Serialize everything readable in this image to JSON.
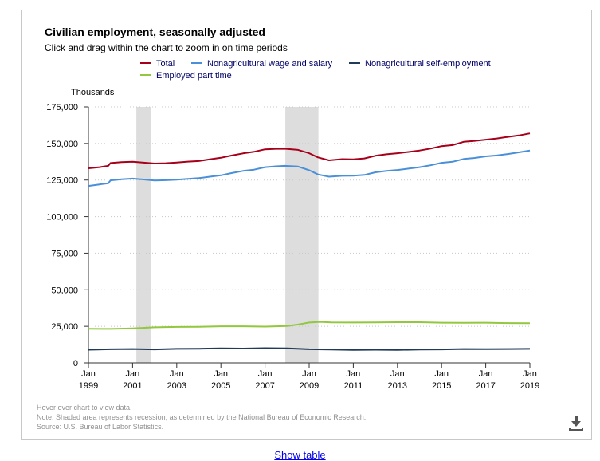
{
  "title": "Civilian employment, seasonally adjusted",
  "subtitle": "Click and drag within the chart to zoom in on time periods",
  "units_label": "Thousands",
  "notes": [
    "Hover over chart to view data.",
    "Note: Shaded area represents recession, as determined by the National Bureau of Economic Research.",
    "Source: U.S. Bureau of Labor Statistics."
  ],
  "show_table_label": "Show table",
  "download_icon": "download-icon",
  "chart_data": {
    "type": "line",
    "title": "Civilian employment, seasonally adjusted",
    "ylabel": "Thousands",
    "xlabel": "",
    "xlim": [
      1999.0,
      2019.0
    ],
    "ylim": [
      0,
      175000
    ],
    "grid": true,
    "legend_position": "top",
    "x_ticks": [
      {
        "value": 1999,
        "month": "Jan",
        "year": "1999"
      },
      {
        "value": 2001,
        "month": "Jan",
        "year": "2001"
      },
      {
        "value": 2003,
        "month": "Jan",
        "year": "2003"
      },
      {
        "value": 2005,
        "month": "Jan",
        "year": "2005"
      },
      {
        "value": 2007,
        "month": "Jan",
        "year": "2007"
      },
      {
        "value": 2009,
        "month": "Jan",
        "year": "2009"
      },
      {
        "value": 2011,
        "month": "Jan",
        "year": "2011"
      },
      {
        "value": 2013,
        "month": "Jan",
        "year": "2013"
      },
      {
        "value": 2015,
        "month": "Jan",
        "year": "2015"
      },
      {
        "value": 2017,
        "month": "Jan",
        "year": "2017"
      },
      {
        "value": 2019,
        "month": "Jan",
        "year": "2019"
      }
    ],
    "y_ticks": [
      0,
      25000,
      50000,
      75000,
      100000,
      125000,
      150000,
      175000
    ],
    "y_tick_labels": [
      "0",
      "25,000",
      "50,000",
      "75,000",
      "100,000",
      "125,000",
      "150,000",
      "175,000"
    ],
    "recessions": [
      {
        "start": 2001.17,
        "end": 2001.83
      },
      {
        "start": 2007.92,
        "end": 2009.42
      }
    ],
    "recession_color": "#dddddd",
    "series": [
      {
        "name": "Total",
        "color": "#a6001a",
        "points": [
          [
            1999.0,
            133000
          ],
          [
            1999.5,
            133800
          ],
          [
            1999.9,
            134700
          ],
          [
            2000.0,
            136600
          ],
          [
            2000.5,
            137200
          ],
          [
            2001.0,
            137500
          ],
          [
            2001.5,
            136900
          ],
          [
            2002.0,
            136300
          ],
          [
            2002.5,
            136500
          ],
          [
            2003.0,
            137000
          ],
          [
            2003.5,
            137600
          ],
          [
            2004.0,
            138000
          ],
          [
            2004.5,
            139200
          ],
          [
            2005.0,
            140200
          ],
          [
            2005.5,
            141800
          ],
          [
            2006.0,
            143200
          ],
          [
            2006.5,
            144300
          ],
          [
            2007.0,
            146000
          ],
          [
            2007.5,
            146300
          ],
          [
            2007.9,
            146400
          ],
          [
            2008.5,
            145600
          ],
          [
            2009.0,
            143300
          ],
          [
            2009.4,
            140500
          ],
          [
            2009.9,
            138500
          ],
          [
            2010.5,
            139300
          ],
          [
            2011.0,
            139200
          ],
          [
            2011.5,
            139800
          ],
          [
            2012.0,
            141600
          ],
          [
            2012.5,
            142600
          ],
          [
            2013.0,
            143300
          ],
          [
            2013.5,
            144200
          ],
          [
            2014.0,
            145200
          ],
          [
            2014.5,
            146500
          ],
          [
            2015.0,
            148200
          ],
          [
            2015.5,
            148900
          ],
          [
            2016.0,
            151100
          ],
          [
            2016.5,
            151800
          ],
          [
            2017.0,
            152600
          ],
          [
            2017.5,
            153400
          ],
          [
            2018.0,
            154500
          ],
          [
            2018.5,
            155500
          ],
          [
            2019.0,
            156900
          ]
        ]
      },
      {
        "name": "Nonagricultural wage and salary",
        "color": "#4a90d9",
        "points": [
          [
            1999.0,
            121000
          ],
          [
            1999.5,
            122000
          ],
          [
            1999.9,
            122800
          ],
          [
            2000.0,
            124800
          ],
          [
            2000.5,
            125500
          ],
          [
            2001.0,
            126000
          ],
          [
            2001.5,
            125400
          ],
          [
            2002.0,
            124700
          ],
          [
            2002.5,
            124900
          ],
          [
            2003.0,
            125300
          ],
          [
            2003.5,
            125800
          ],
          [
            2004.0,
            126300
          ],
          [
            2004.5,
            127300
          ],
          [
            2005.0,
            128200
          ],
          [
            2005.5,
            129800
          ],
          [
            2006.0,
            131200
          ],
          [
            2006.5,
            132100
          ],
          [
            2007.0,
            133800
          ],
          [
            2007.5,
            134400
          ],
          [
            2007.9,
            134700
          ],
          [
            2008.5,
            134200
          ],
          [
            2009.0,
            131700
          ],
          [
            2009.4,
            128800
          ],
          [
            2009.9,
            127300
          ],
          [
            2010.5,
            127900
          ],
          [
            2011.0,
            128000
          ],
          [
            2011.5,
            128500
          ],
          [
            2012.0,
            130300
          ],
          [
            2012.5,
            131200
          ],
          [
            2013.0,
            131900
          ],
          [
            2013.5,
            132800
          ],
          [
            2014.0,
            133800
          ],
          [
            2014.5,
            135100
          ],
          [
            2015.0,
            136800
          ],
          [
            2015.5,
            137500
          ],
          [
            2016.0,
            139400
          ],
          [
            2016.5,
            140100
          ],
          [
            2017.0,
            141200
          ],
          [
            2017.5,
            141800
          ],
          [
            2018.0,
            142800
          ],
          [
            2018.5,
            143900
          ],
          [
            2019.0,
            145100
          ]
        ]
      },
      {
        "name": "Nonagricultural self-employment",
        "color": "#1f3b57",
        "points": [
          [
            1999.0,
            9000
          ],
          [
            2000.0,
            9300
          ],
          [
            2001.0,
            9500
          ],
          [
            2002.0,
            9200
          ],
          [
            2003.0,
            9600
          ],
          [
            2004.0,
            9700
          ],
          [
            2005.0,
            10000
          ],
          [
            2006.0,
            9800
          ],
          [
            2007.0,
            10100
          ],
          [
            2008.0,
            9900
          ],
          [
            2009.0,
            9300
          ],
          [
            2010.0,
            9100
          ],
          [
            2011.0,
            8900
          ],
          [
            2012.0,
            9000
          ],
          [
            2013.0,
            8900
          ],
          [
            2014.0,
            9100
          ],
          [
            2015.0,
            9200
          ],
          [
            2016.0,
            9500
          ],
          [
            2017.0,
            9400
          ],
          [
            2018.0,
            9500
          ],
          [
            2019.0,
            9600
          ]
        ]
      },
      {
        "name": "Employed part time",
        "color": "#92c83e",
        "points": [
          [
            1999.0,
            23300
          ],
          [
            2000.0,
            23200
          ],
          [
            2001.0,
            23600
          ],
          [
            2002.0,
            24300
          ],
          [
            2003.0,
            24600
          ],
          [
            2004.0,
            24700
          ],
          [
            2005.0,
            25000
          ],
          [
            2006.0,
            25000
          ],
          [
            2007.0,
            24800
          ],
          [
            2008.0,
            25200
          ],
          [
            2008.5,
            26200
          ],
          [
            2009.0,
            27600
          ],
          [
            2009.5,
            28000
          ],
          [
            2010.0,
            27700
          ],
          [
            2011.0,
            27600
          ],
          [
            2012.0,
            27700
          ],
          [
            2013.0,
            27800
          ],
          [
            2014.0,
            27800
          ],
          [
            2015.0,
            27500
          ],
          [
            2016.0,
            27400
          ],
          [
            2017.0,
            27500
          ],
          [
            2018.0,
            27200
          ],
          [
            2019.0,
            27100
          ]
        ]
      }
    ]
  }
}
